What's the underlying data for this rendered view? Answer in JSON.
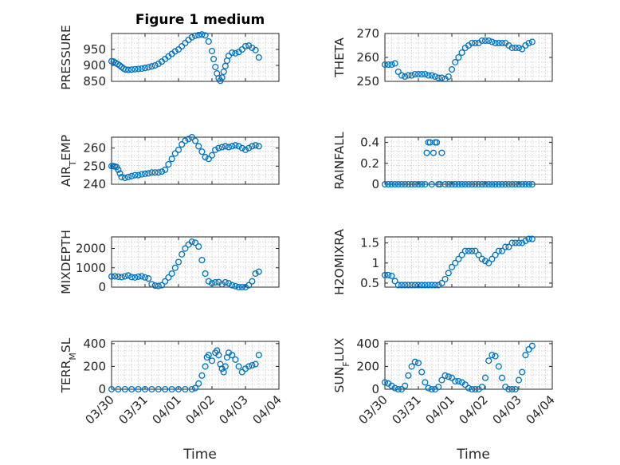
{
  "figure": {
    "title": "Figure 1 medium",
    "marker_color": "#0072bd",
    "xlabel": "Time",
    "xtick_labels": [
      "03/30",
      "03/31",
      "04/01",
      "04/02",
      "04/03",
      "04/04"
    ]
  },
  "chart_data": [
    {
      "id": "pressure",
      "type": "scatter",
      "ylabel": "PRESSURE",
      "ylabel_sub": "",
      "ylabel_tail": "",
      "ylim": [
        850,
        1000
      ],
      "yticks": [
        850,
        900,
        950
      ],
      "xlim": [
        0,
        5
      ],
      "grid": true,
      "x": [
        0.0,
        0.06,
        0.12,
        0.18,
        0.24,
        0.3,
        0.36,
        0.42,
        0.5,
        0.6,
        0.7,
        0.8,
        0.9,
        1.0,
        1.1,
        1.2,
        1.3,
        1.4,
        1.5,
        1.6,
        1.7,
        1.8,
        1.9,
        2.0,
        2.1,
        2.2,
        2.3,
        2.4,
        2.5,
        2.6,
        2.7,
        2.8,
        2.9,
        3.0,
        3.05,
        3.1,
        3.15,
        3.2,
        3.25,
        3.3,
        3.35,
        3.4,
        3.45,
        3.5,
        3.6,
        3.7,
        3.8,
        3.9,
        4.0,
        4.1,
        4.2,
        4.3,
        4.4
      ],
      "y": [
        913,
        912,
        908,
        904,
        900,
        895,
        890,
        887,
        886,
        887,
        888,
        889,
        890,
        892,
        894,
        897,
        900,
        905,
        912,
        920,
        928,
        936,
        944,
        950,
        960,
        970,
        980,
        988,
        993,
        995,
        997,
        994,
        975,
        945,
        920,
        895,
        875,
        860,
        852,
        862,
        880,
        898,
        915,
        930,
        940,
        938,
        942,
        950,
        960,
        962,
        955,
        948,
        925
      ]
    },
    {
      "id": "theta",
      "type": "scatter",
      "ylabel": "THETA",
      "ylabel_sub": "",
      "ylabel_tail": "",
      "ylim": [
        250,
        270
      ],
      "yticks": [
        250,
        260,
        270
      ],
      "xlim": [
        0,
        5
      ],
      "grid": true,
      "x": [
        0.0,
        0.1,
        0.2,
        0.3,
        0.4,
        0.5,
        0.6,
        0.7,
        0.8,
        0.9,
        1.0,
        1.1,
        1.2,
        1.3,
        1.4,
        1.5,
        1.6,
        1.7,
        1.8,
        1.9,
        2.0,
        2.1,
        2.2,
        2.3,
        2.4,
        2.5,
        2.6,
        2.7,
        2.8,
        2.9,
        3.0,
        3.1,
        3.2,
        3.3,
        3.4,
        3.5,
        3.6,
        3.7,
        3.8,
        3.9,
        4.0,
        4.1,
        4.2,
        4.3,
        4.4
      ],
      "y": [
        257,
        257,
        257,
        257.5,
        254,
        252.5,
        252,
        252.5,
        252.5,
        253,
        253,
        253,
        253,
        252.5,
        252.5,
        252,
        251.5,
        251.5,
        251,
        252,
        255,
        258,
        260,
        262,
        264,
        265,
        266,
        266,
        266,
        267,
        267,
        267,
        266.5,
        266,
        266,
        266,
        266,
        265,
        264,
        264,
        264,
        263.5,
        265,
        266,
        266.5
      ]
    },
    {
      "id": "air_temp",
      "type": "scatter",
      "ylabel": "AIR",
      "ylabel_sub": "T",
      "ylabel_tail": "EMP",
      "ylim": [
        240,
        266
      ],
      "yticks": [
        240,
        250,
        260
      ],
      "xlim": [
        0,
        5
      ],
      "grid": true,
      "x": [
        0.0,
        0.05,
        0.1,
        0.15,
        0.2,
        0.25,
        0.3,
        0.4,
        0.5,
        0.6,
        0.7,
        0.8,
        0.9,
        1.0,
        1.1,
        1.2,
        1.3,
        1.4,
        1.5,
        1.6,
        1.7,
        1.8,
        1.9,
        2.0,
        2.1,
        2.2,
        2.3,
        2.4,
        2.5,
        2.6,
        2.7,
        2.8,
        2.9,
        3.0,
        3.1,
        3.2,
        3.3,
        3.4,
        3.5,
        3.6,
        3.7,
        3.8,
        3.9,
        4.0,
        4.1,
        4.2,
        4.3,
        4.4
      ],
      "y": [
        250,
        250,
        249.8,
        249.5,
        248,
        246,
        244,
        243.5,
        244,
        244.5,
        245,
        245,
        245.5,
        245.8,
        246,
        246.5,
        246.5,
        246.5,
        247,
        248,
        251,
        254,
        257,
        259,
        262,
        264,
        265,
        266,
        264,
        261,
        258,
        255,
        254,
        256,
        259,
        260,
        260.5,
        261,
        260.5,
        261,
        261.5,
        261,
        260,
        259,
        260,
        261,
        261.5,
        261
      ]
    },
    {
      "id": "rainfall",
      "type": "scatter",
      "ylabel": "RAINFALL",
      "ylabel_sub": "",
      "ylabel_tail": "",
      "ylim": [
        0,
        0.45
      ],
      "yticks": [
        0,
        0.2,
        0.4
      ],
      "xlim": [
        0,
        5
      ],
      "grid": true,
      "x": [
        0.0,
        0.1,
        0.2,
        0.3,
        0.4,
        0.5,
        0.6,
        0.7,
        0.8,
        0.9,
        1.0,
        1.1,
        1.2,
        1.25,
        1.3,
        1.35,
        1.4,
        1.45,
        1.5,
        1.55,
        1.6,
        1.65,
        1.7,
        1.8,
        1.9,
        2.0,
        2.1,
        2.2,
        2.3,
        2.4,
        2.5,
        2.6,
        2.7,
        2.8,
        2.9,
        3.0,
        3.1,
        3.2,
        3.3,
        3.4,
        3.5,
        3.6,
        3.7,
        3.8,
        3.9,
        4.0,
        4.1,
        4.2,
        4.3,
        4.4
      ],
      "y": [
        0,
        0,
        0,
        0,
        0,
        0,
        0,
        0,
        0,
        0,
        0,
        0,
        0,
        0.3,
        0.4,
        0.4,
        0,
        0.3,
        0.4,
        0.4,
        0,
        0,
        0.3,
        0,
        0,
        0,
        0,
        0,
        0,
        0,
        0,
        0,
        0,
        0,
        0,
        0,
        0,
        0,
        0,
        0,
        0,
        0,
        0,
        0,
        0,
        0,
        0,
        0,
        0,
        0
      ]
    },
    {
      "id": "mixdepth",
      "type": "scatter",
      "ylabel": "MIXDEPTH",
      "ylabel_sub": "",
      "ylabel_tail": "",
      "ylim": [
        0,
        2600
      ],
      "yticks": [
        0,
        1000,
        2000
      ],
      "xlim": [
        0,
        5
      ],
      "grid": true,
      "x": [
        0.0,
        0.1,
        0.2,
        0.3,
        0.4,
        0.5,
        0.6,
        0.7,
        0.8,
        0.9,
        1.0,
        1.1,
        1.2,
        1.3,
        1.4,
        1.5,
        1.6,
        1.7,
        1.8,
        1.9,
        2.0,
        2.1,
        2.2,
        2.3,
        2.4,
        2.5,
        2.6,
        2.7,
        2.8,
        2.9,
        3.0,
        3.1,
        3.2,
        3.3,
        3.4,
        3.5,
        3.6,
        3.7,
        3.8,
        3.9,
        4.0,
        4.1,
        4.2,
        4.3,
        4.4
      ],
      "y": [
        550,
        560,
        540,
        520,
        560,
        600,
        520,
        500,
        540,
        560,
        500,
        450,
        150,
        80,
        60,
        100,
        300,
        500,
        700,
        1000,
        1300,
        1700,
        2000,
        2200,
        2350,
        2300,
        2100,
        1400,
        700,
        300,
        200,
        250,
        260,
        150,
        250,
        200,
        100,
        50,
        0,
        0,
        0,
        100,
        300,
        700,
        800
      ]
    },
    {
      "id": "h2omixra",
      "type": "scatter",
      "ylabel": "H2OMIXRA",
      "ylabel_sub": "",
      "ylabel_tail": "",
      "ylim": [
        0.4,
        1.65
      ],
      "yticks": [
        0.5,
        1,
        1.5
      ],
      "xlim": [
        0,
        5
      ],
      "grid": true,
      "x": [
        0.0,
        0.1,
        0.2,
        0.3,
        0.4,
        0.5,
        0.6,
        0.7,
        0.8,
        0.9,
        1.0,
        1.1,
        1.2,
        1.3,
        1.4,
        1.5,
        1.6,
        1.7,
        1.8,
        1.9,
        2.0,
        2.1,
        2.2,
        2.3,
        2.4,
        2.5,
        2.6,
        2.7,
        2.8,
        2.9,
        3.0,
        3.1,
        3.2,
        3.3,
        3.4,
        3.5,
        3.6,
        3.7,
        3.8,
        3.9,
        4.0,
        4.1,
        4.2,
        4.3,
        4.4
      ],
      "y": [
        0.7,
        0.7,
        0.68,
        0.55,
        0.45,
        0.45,
        0.45,
        0.45,
        0.45,
        0.45,
        0.45,
        0.45,
        0.45,
        0.45,
        0.45,
        0.45,
        0.45,
        0.5,
        0.6,
        0.75,
        0.9,
        1.0,
        1.1,
        1.2,
        1.3,
        1.3,
        1.3,
        1.3,
        1.2,
        1.1,
        1.05,
        1.0,
        1.1,
        1.2,
        1.3,
        1.3,
        1.4,
        1.4,
        1.5,
        1.5,
        1.5,
        1.5,
        1.55,
        1.6,
        1.6
      ]
    },
    {
      "id": "terr_msl",
      "type": "scatter",
      "ylabel": "TERR",
      "ylabel_sub": "M",
      "ylabel_tail": "SL",
      "ylim": [
        0,
        420
      ],
      "yticks": [
        0,
        200,
        400
      ],
      "xlim": [
        0,
        5
      ],
      "grid": true,
      "x": [
        0.0,
        0.2,
        0.4,
        0.6,
        0.8,
        1.0,
        1.2,
        1.4,
        1.6,
        1.8,
        2.0,
        2.2,
        2.4,
        2.5,
        2.6,
        2.7,
        2.8,
        2.85,
        2.9,
        3.0,
        3.1,
        3.15,
        3.2,
        3.25,
        3.3,
        3.35,
        3.4,
        3.45,
        3.5,
        3.6,
        3.7,
        3.8,
        3.9,
        4.0,
        4.1,
        4.2,
        4.3,
        4.4
      ],
      "y": [
        0,
        0,
        0,
        0,
        0,
        0,
        0,
        0,
        0,
        0,
        0,
        0,
        0,
        10,
        50,
        120,
        200,
        280,
        300,
        250,
        320,
        340,
        300,
        220,
        180,
        150,
        200,
        280,
        320,
        300,
        260,
        200,
        150,
        180,
        200,
        210,
        220,
        300
      ]
    },
    {
      "id": "sun_flux",
      "type": "scatter",
      "ylabel": "SUN",
      "ylabel_sub": "F",
      "ylabel_tail": "LUX",
      "ylim": [
        0,
        420
      ],
      "yticks": [
        0,
        200,
        400
      ],
      "xlim": [
        0,
        5
      ],
      "grid": true,
      "x": [
        0.0,
        0.1,
        0.2,
        0.3,
        0.4,
        0.5,
        0.6,
        0.7,
        0.8,
        0.9,
        1.0,
        1.1,
        1.2,
        1.3,
        1.4,
        1.5,
        1.6,
        1.7,
        1.8,
        1.9,
        2.0,
        2.1,
        2.2,
        2.3,
        2.4,
        2.5,
        2.6,
        2.7,
        2.8,
        2.9,
        3.0,
        3.1,
        3.2,
        3.3,
        3.4,
        3.5,
        3.6,
        3.7,
        3.8,
        3.9,
        4.0,
        4.1,
        4.2,
        4.3,
        4.4
      ],
      "y": [
        60,
        50,
        30,
        10,
        0,
        0,
        30,
        120,
        200,
        240,
        230,
        150,
        60,
        10,
        0,
        0,
        20,
        80,
        120,
        110,
        100,
        70,
        70,
        60,
        40,
        10,
        0,
        0,
        0,
        20,
        100,
        250,
        300,
        290,
        200,
        100,
        20,
        0,
        0,
        0,
        80,
        150,
        300,
        350,
        380
      ]
    }
  ]
}
